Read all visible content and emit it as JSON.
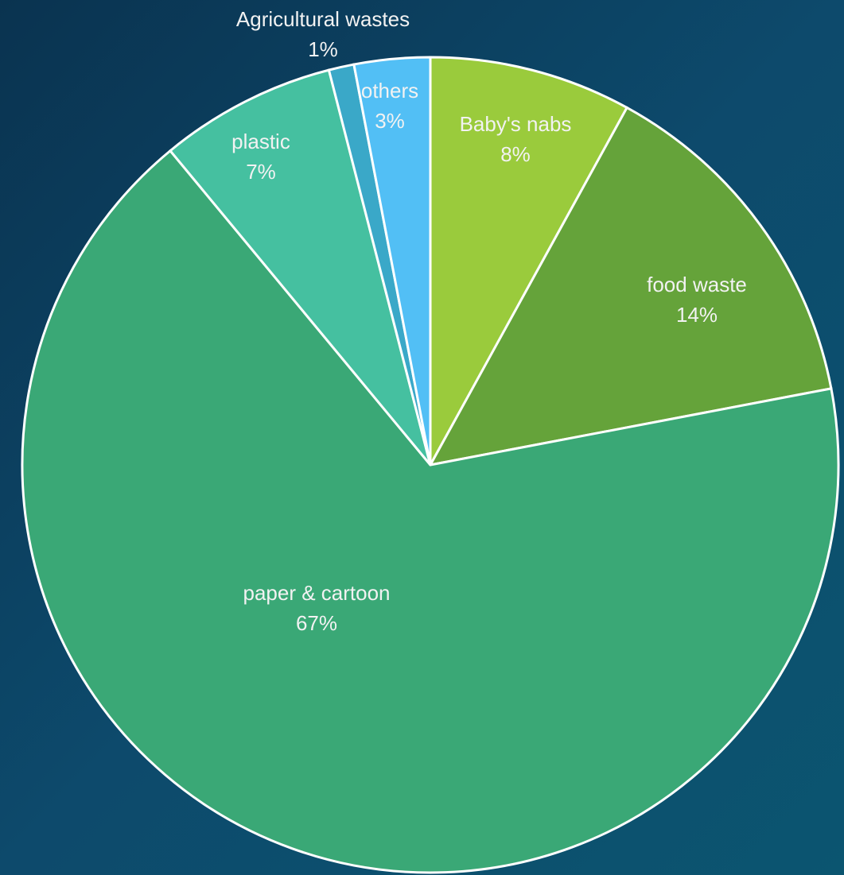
{
  "chart_data": {
    "type": "pie",
    "categories": [
      "Baby's nabs",
      "food waste",
      "paper & cartoon",
      "plastic",
      "Agricultural wastes",
      "others"
    ],
    "values": [
      8,
      14,
      67,
      7,
      1,
      3
    ],
    "value_labels": [
      "8%",
      "14%",
      "67%",
      "7%",
      "1%",
      "3%"
    ],
    "colors": [
      "#9acb3c",
      "#65a33a",
      "#3aa876",
      "#45c0a0",
      "#3aa8c8",
      "#52bff5"
    ]
  }
}
